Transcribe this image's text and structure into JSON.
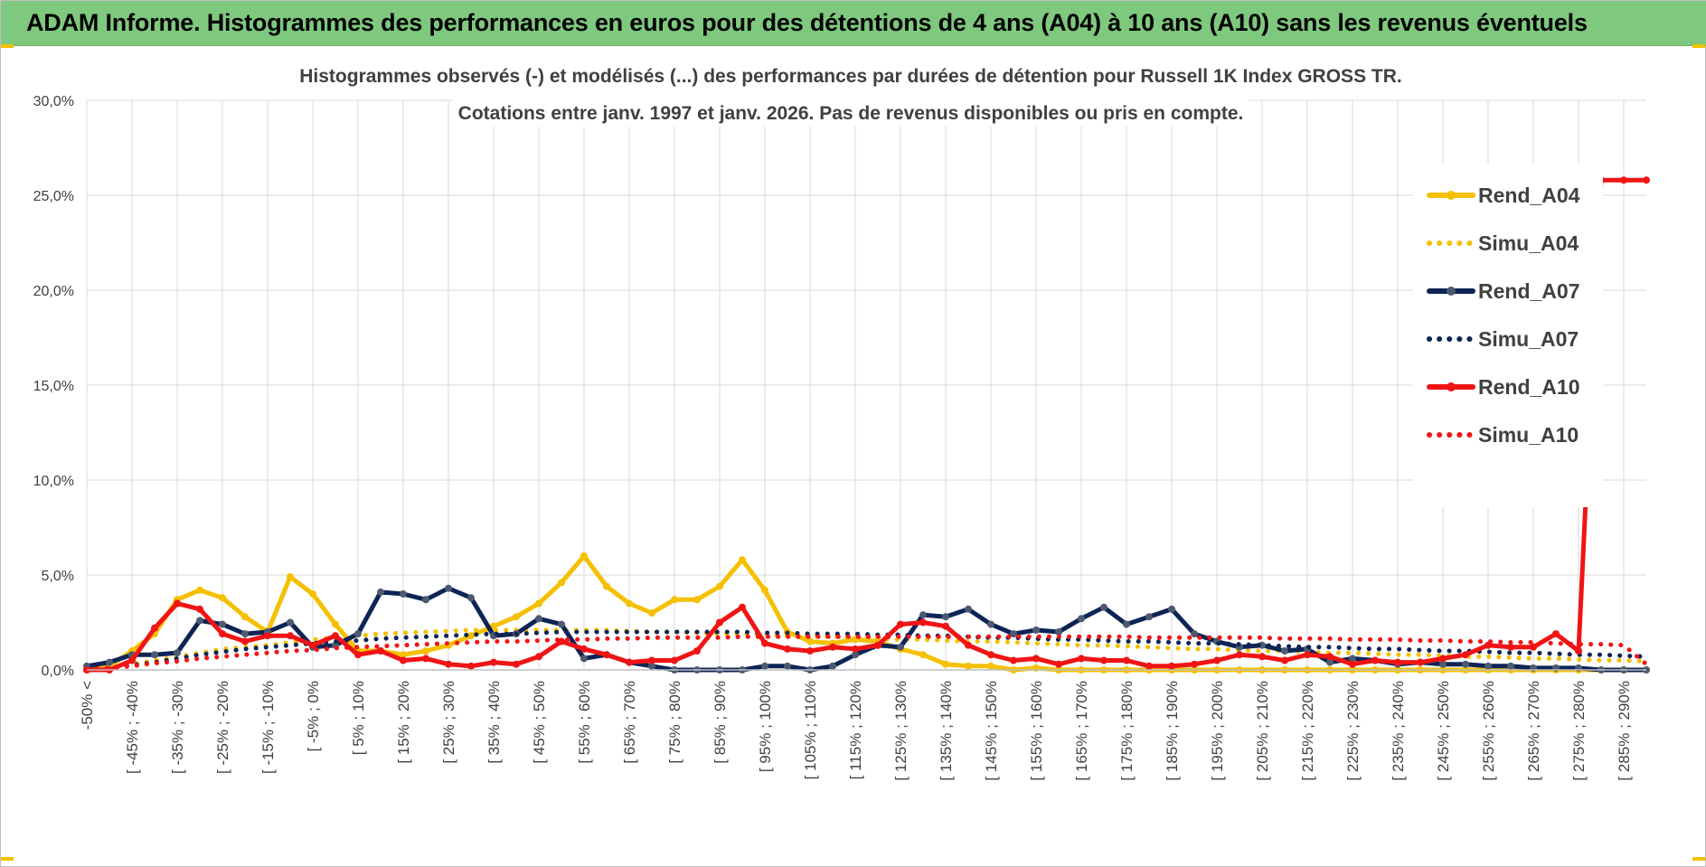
{
  "header": {
    "title": "ADAM Informe. Histogrammes des performances en euros pour des détentions de 4 ans (A04) à 10 ans (A10) sans les revenus éventuels"
  },
  "colors": {
    "header_bg": "#7fc97f",
    "accent_corner": "#f2c200",
    "A04": "#f5c000",
    "A07": "#0d2456",
    "A10": "#f01414",
    "marker_A07": "#4d5a70",
    "grid": "#d9d9d9",
    "axis_text": "#404040"
  },
  "chart_data": {
    "type": "line",
    "title_lines": [
      "Histogrammes observés (-) et modélisés (...) des performances par durées de détention pour Russell 1K Index GROSS TR.",
      "Cotations entre janv. 1997 et janv. 2026. Pas de revenus disponibles ou pris en compte."
    ],
    "y_tick_labels": [
      "0,0%",
      "5,0%",
      "10,0%",
      "15,0%",
      "20,0%",
      "25,0%",
      "30,0%"
    ],
    "ylim": [
      0,
      30
    ],
    "y_unit": "%",
    "grid": true,
    "legend_position": "right",
    "x_tick_labels": [
      "-50% <",
      "[ -45% ; -40%",
      "[ -35% ; -30%",
      "[ -25% ; -20%",
      "[ -15% ; -10%",
      "[ -5% ; 0%",
      "[ 5% ; 10%",
      "[ 15% ; 20%",
      "[ 25% ; 30%",
      "[ 35% ; 40%",
      "[ 45% ; 50%",
      "[ 55% ; 60%",
      "[ 65% ; 70%",
      "[ 75% ; 80%",
      "[ 85% ; 90%",
      "[ 95% ; 100%",
      "[ 105% ; 110%",
      "[ 115% ; 120%",
      "[ 125% ; 130%",
      "[ 135% ; 140%",
      "[ 145% ; 150%",
      "[ 155% ; 160%",
      "[ 165% ; 170%",
      "[ 175% ; 180%",
      "[ 185% ; 190%",
      "[ 195% ; 200%",
      "[ 205% ; 210%",
      "[ 215% ; 220%",
      "[ 225% ; 230%",
      "[ 235% ; 240%",
      "[ 245% ; 250%",
      "[ 255% ; 260%",
      "[ 265% ; 270%",
      "[ 275% ; 280%",
      "[ 285% ; 290%"
    ],
    "series": [
      {
        "name": "Rend_A04",
        "style": "solid",
        "color": "#f5c000",
        "values": [
          0.0,
          0.2,
          1.0,
          1.9,
          3.7,
          4.2,
          3.8,
          2.8,
          2.0,
          4.9,
          4.0,
          2.4,
          1.0,
          1.0,
          0.8,
          1.0,
          1.3,
          1.8,
          2.3,
          2.8,
          3.5,
          4.6,
          6.0,
          4.4,
          3.5,
          3.0,
          3.7,
          3.7,
          4.4,
          5.8,
          4.2,
          2.0,
          1.5,
          1.4,
          1.6,
          1.5,
          1.1,
          0.8,
          0.3,
          0.2,
          0.2,
          0.0,
          0.1,
          0.0,
          0.0,
          0.0,
          0.0,
          0.0,
          0.0,
          0.0,
          0.0,
          0.0,
          0.0,
          0.0,
          0.0,
          0.0,
          0.0,
          0.0,
          0.0,
          0.0,
          0.0,
          0.0,
          0.0,
          0.0,
          0.0,
          0.0,
          0.0,
          0.0,
          0.0,
          0.0
        ]
      },
      {
        "name": "Simu_A04",
        "style": "dotted",
        "color": "#f5c000",
        "values": [
          0.05,
          0.15,
          0.3,
          0.5,
          0.7,
          0.9,
          1.1,
          1.2,
          1.3,
          1.45,
          1.6,
          1.7,
          1.8,
          1.9,
          1.95,
          2.0,
          2.05,
          2.1,
          2.1,
          2.1,
          2.1,
          2.1,
          2.1,
          2.1,
          2.05,
          2.0,
          2.0,
          1.95,
          1.9,
          1.9,
          1.85,
          1.8,
          1.8,
          1.75,
          1.7,
          1.65,
          1.6,
          1.6,
          1.55,
          1.5,
          1.5,
          1.45,
          1.4,
          1.35,
          1.3,
          1.3,
          1.25,
          1.2,
          1.15,
          1.1,
          1.1,
          1.05,
          1.0,
          1.0,
          0.95,
          0.9,
          0.9,
          0.85,
          0.8,
          0.8,
          0.75,
          0.7,
          0.7,
          0.65,
          0.6,
          0.6,
          0.55,
          0.5,
          0.5,
          0.45
        ]
      },
      {
        "name": "Rend_A07",
        "style": "solid",
        "color": "#0d2456",
        "values": [
          0.2,
          0.4,
          0.8,
          0.8,
          0.9,
          2.6,
          2.4,
          1.9,
          2.0,
          2.5,
          1.2,
          1.3,
          1.9,
          4.1,
          4.0,
          3.7,
          4.3,
          3.8,
          1.8,
          1.9,
          2.7,
          2.4,
          0.6,
          0.8,
          0.4,
          0.2,
          0.0,
          0.0,
          0.0,
          0.0,
          0.2,
          0.2,
          0.0,
          0.2,
          0.8,
          1.3,
          1.2,
          2.9,
          2.8,
          3.2,
          2.4,
          1.9,
          2.1,
          2.0,
          2.7,
          3.3,
          2.4,
          2.8,
          3.2,
          1.9,
          1.5,
          1.2,
          1.3,
          1.0,
          1.1,
          0.4,
          0.6,
          0.5,
          0.3,
          0.4,
          0.3,
          0.3,
          0.2,
          0.2,
          0.1,
          0.1,
          0.1,
          0.0,
          0.0,
          0.0
        ]
      },
      {
        "name": "Simu_A07",
        "style": "dotted",
        "color": "#0d2456",
        "values": [
          0.05,
          0.1,
          0.25,
          0.4,
          0.6,
          0.8,
          0.95,
          1.1,
          1.2,
          1.3,
          1.4,
          1.5,
          1.55,
          1.65,
          1.7,
          1.75,
          1.8,
          1.85,
          1.9,
          1.9,
          1.95,
          2.0,
          2.0,
          2.0,
          2.0,
          2.0,
          2.0,
          2.0,
          2.0,
          2.0,
          1.95,
          1.95,
          1.9,
          1.9,
          1.9,
          1.85,
          1.85,
          1.8,
          1.8,
          1.75,
          1.7,
          1.7,
          1.65,
          1.6,
          1.6,
          1.55,
          1.5,
          1.5,
          1.45,
          1.4,
          1.4,
          1.35,
          1.3,
          1.25,
          1.2,
          1.2,
          1.15,
          1.1,
          1.1,
          1.05,
          1.0,
          1.0,
          0.95,
          0.9,
          0.9,
          0.85,
          0.8,
          0.8,
          0.75,
          0.7
        ]
      },
      {
        "name": "Rend_A10",
        "style": "solid",
        "color": "#f01414",
        "values": [
          0.0,
          0.0,
          0.5,
          2.2,
          3.5,
          3.2,
          1.9,
          1.5,
          1.8,
          1.8,
          1.3,
          1.8,
          0.8,
          1.0,
          0.5,
          0.6,
          0.3,
          0.2,
          0.4,
          0.3,
          0.7,
          1.5,
          1.1,
          0.8,
          0.4,
          0.5,
          0.5,
          1.0,
          2.5,
          3.3,
          1.4,
          1.1,
          1.0,
          1.2,
          1.1,
          1.3,
          2.4,
          2.5,
          2.3,
          1.3,
          0.8,
          0.5,
          0.6,
          0.3,
          0.6,
          0.5,
          0.5,
          0.2,
          0.2,
          0.3,
          0.5,
          0.8,
          0.7,
          0.5,
          0.8,
          0.7,
          0.3,
          0.5,
          0.4,
          0.4,
          0.6,
          0.8,
          1.3,
          1.2,
          1.2,
          1.9,
          1.0,
          25.8,
          25.8,
          25.8
        ]
      },
      {
        "name": "Simu_A10",
        "style": "dotted",
        "color": "#f01414",
        "values": [
          0.05,
          0.1,
          0.2,
          0.35,
          0.45,
          0.6,
          0.7,
          0.8,
          0.9,
          1.0,
          1.05,
          1.15,
          1.2,
          1.25,
          1.3,
          1.35,
          1.4,
          1.45,
          1.5,
          1.5,
          1.55,
          1.6,
          1.6,
          1.65,
          1.65,
          1.7,
          1.7,
          1.7,
          1.7,
          1.75,
          1.75,
          1.75,
          1.75,
          1.75,
          1.75,
          1.75,
          1.75,
          1.75,
          1.75,
          1.75,
          1.75,
          1.75,
          1.75,
          1.75,
          1.75,
          1.75,
          1.75,
          1.7,
          1.7,
          1.7,
          1.7,
          1.7,
          1.7,
          1.65,
          1.65,
          1.65,
          1.6,
          1.6,
          1.6,
          1.55,
          1.55,
          1.5,
          1.5,
          1.45,
          1.45,
          1.4,
          1.35,
          1.35,
          1.3,
          0.3
        ]
      }
    ]
  }
}
